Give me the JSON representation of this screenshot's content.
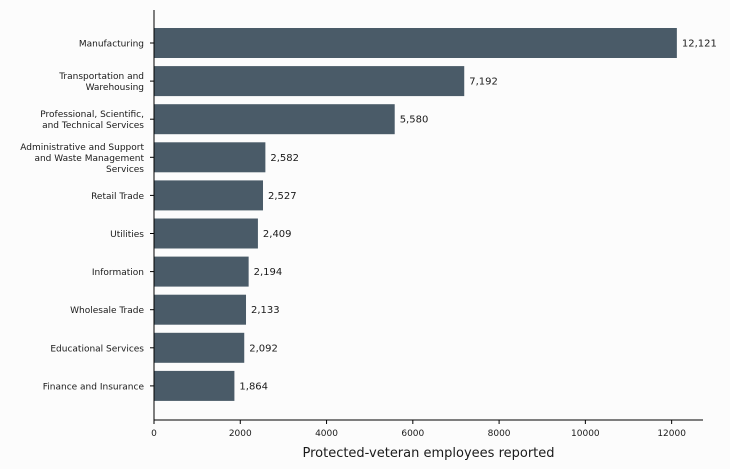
{
  "chart_data": {
    "type": "bar",
    "orientation": "horizontal",
    "title": "",
    "xlabel": "Protected-veteran employees reported",
    "ylabel": "",
    "categories": [
      "Manufacturing",
      "Transportation and\nWarehousing",
      "Professional, Scientific,\nand Technical Services",
      "Administrative and Support\nand Waste Management\nServices",
      "Retail Trade",
      "Utilities",
      "Information",
      "Wholesale Trade",
      "Educational Services",
      "Finance and Insurance"
    ],
    "values": [
      12121,
      7192,
      5580,
      2582,
      2527,
      2409,
      2194,
      2133,
      2092,
      1864
    ],
    "value_labels": [
      "12,121",
      "7,192",
      "5,580",
      "2,582",
      "2,527",
      "2,409",
      "2,194",
      "2,133",
      "2,092",
      "1,864"
    ],
    "xlim": [
      0,
      12727
    ],
    "xticks": [
      0,
      2000,
      4000,
      6000,
      8000,
      10000,
      12000
    ],
    "xtick_labels": [
      "0",
      "2000",
      "4000",
      "6000",
      "8000",
      "10000",
      "12000"
    ],
    "bar_color": "#4a5b68",
    "grid": false,
    "legend": "none"
  }
}
